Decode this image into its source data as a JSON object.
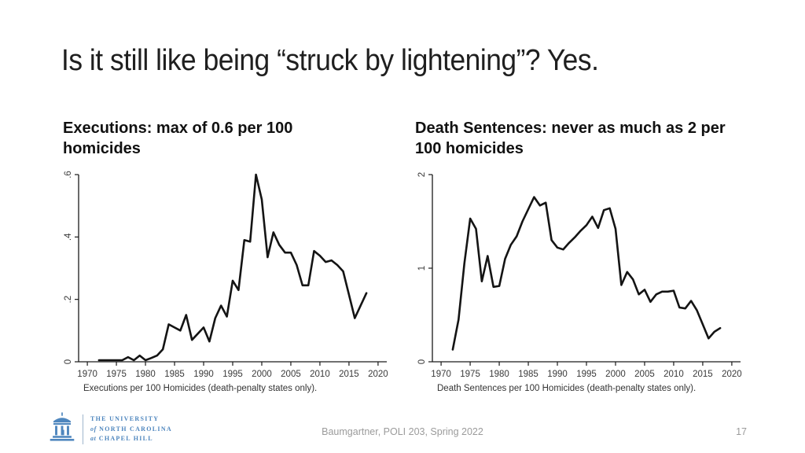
{
  "slide": {
    "title": "Is it still like being “struck by lightening”? Yes.",
    "panels": [
      {
        "heading": "Executions: max of 0.6 per 100 homicides"
      },
      {
        "heading": "Death Sentences: never as much as 2 per 100 homicides"
      }
    ],
    "footer": {
      "credit": "Baumgartner, POLI 203, Spring 2022",
      "page_number": "17"
    },
    "logo": {
      "color": "#4E86BE",
      "lines": [
        {
          "pre": "",
          "text": "THE UNIVERSITY"
        },
        {
          "pre": "of",
          "text": " NORTH CAROLINA"
        },
        {
          "pre": "at",
          "text": " CHAPEL HILL"
        }
      ]
    }
  },
  "chart_data": [
    {
      "type": "line",
      "title": "",
      "xlabel": "Executions per 100 Homicides (death-penalty states only).",
      "ylabel": "",
      "xlim": [
        1968.5,
        2021.5
      ],
      "ylim": [
        0,
        0.6
      ],
      "xticks": [
        1970,
        1975,
        1980,
        1985,
        1990,
        1995,
        2000,
        2005,
        2010,
        2015,
        2020
      ],
      "yticks": [
        0,
        0.2,
        0.4,
        0.6
      ],
      "ytick_labels": [
        "0",
        ".2",
        ".4",
        ".6"
      ],
      "grid": false,
      "legend": "none",
      "line_color": "#141414",
      "x": [
        1972,
        1973,
        1974,
        1975,
        1976,
        1977,
        1978,
        1979,
        1980,
        1981,
        1982,
        1983,
        1984,
        1985,
        1986,
        1987,
        1988,
        1989,
        1990,
        1991,
        1992,
        1993,
        1994,
        1995,
        1996,
        1997,
        1998,
        1999,
        2000,
        2001,
        2002,
        2003,
        2004,
        2005,
        2006,
        2007,
        2008,
        2009,
        2010,
        2011,
        2012,
        2013,
        2014,
        2015,
        2016,
        2017,
        2018
      ],
      "values": [
        0.005,
        0.005,
        0.005,
        0.005,
        0.005,
        0.015,
        0.005,
        0.02,
        0.005,
        0.012,
        0.02,
        0.04,
        0.12,
        0.11,
        0.1,
        0.15,
        0.07,
        0.09,
        0.11,
        0.065,
        0.14,
        0.18,
        0.145,
        0.26,
        0.23,
        0.39,
        0.385,
        0.6,
        0.52,
        0.335,
        0.415,
        0.375,
        0.35,
        0.35,
        0.31,
        0.245,
        0.245,
        0.355,
        0.34,
        0.32,
        0.325,
        0.31,
        0.29,
        0.215,
        0.14,
        0.18,
        0.22
      ]
    },
    {
      "type": "line",
      "title": "",
      "xlabel": "Death Sentences per 100 Homicides (death-penalty states only).",
      "ylabel": "",
      "xlim": [
        1968.5,
        2021.5
      ],
      "ylim": [
        0,
        2
      ],
      "xticks": [
        1970,
        1975,
        1980,
        1985,
        1990,
        1995,
        2000,
        2005,
        2010,
        2015,
        2020
      ],
      "yticks": [
        0,
        1,
        2
      ],
      "ytick_labels": [
        "0",
        "1",
        "2"
      ],
      "grid": false,
      "legend": "none",
      "line_color": "#141414",
      "x": [
        1972,
        1973,
        1974,
        1975,
        1976,
        1977,
        1978,
        1979,
        1980,
        1981,
        1982,
        1983,
        1984,
        1985,
        1986,
        1987,
        1988,
        1989,
        1990,
        1991,
        1992,
        1993,
        1994,
        1995,
        1996,
        1997,
        1998,
        1999,
        2000,
        2001,
        2002,
        2003,
        2004,
        2005,
        2006,
        2007,
        2008,
        2009,
        2010,
        2011,
        2012,
        2013,
        2014,
        2015,
        2016,
        2017,
        2018
      ],
      "values": [
        0.13,
        0.45,
        1.05,
        1.53,
        1.42,
        0.86,
        1.13,
        0.8,
        0.81,
        1.1,
        1.25,
        1.34,
        1.5,
        1.63,
        1.76,
        1.67,
        1.7,
        1.3,
        1.22,
        1.2,
        1.27,
        1.33,
        1.4,
        1.46,
        1.55,
        1.43,
        1.62,
        1.64,
        1.42,
        0.82,
        0.96,
        0.88,
        0.72,
        0.77,
        0.64,
        0.72,
        0.75,
        0.75,
        0.76,
        0.58,
        0.57,
        0.65,
        0.55,
        0.4,
        0.25,
        0.32,
        0.36
      ]
    }
  ]
}
